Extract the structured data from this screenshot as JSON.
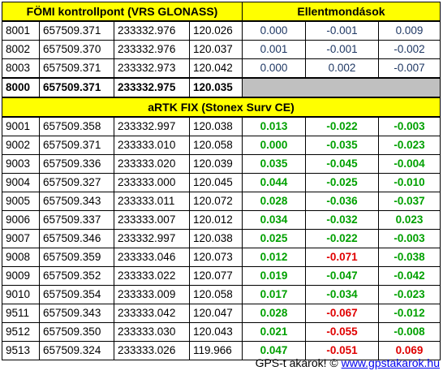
{
  "header": {
    "control_title": "FÖMI kontrollpont (VRS GLONASS)",
    "diff_title": "Ellentmondások"
  },
  "control_rows": [
    {
      "id": "8001",
      "x": "657509.371",
      "y": "233332.976",
      "h": "120.026",
      "d1": "0.000",
      "d2": "-0.001",
      "d3": "0.009"
    },
    {
      "id": "8002",
      "x": "657509.370",
      "y": "233332.976",
      "h": "120.037",
      "d1": "0.001",
      "d2": "-0.001",
      "d3": "-0.002"
    },
    {
      "id": "8003",
      "x": "657509.371",
      "y": "233332.973",
      "h": "120.042",
      "d1": "0.000",
      "d2": "0.002",
      "d3": "-0.007"
    }
  ],
  "mean_row": {
    "id": "8000",
    "x": "657509.371",
    "y": "233332.975",
    "h": "120.035"
  },
  "section2_title": "aRTK FIX (Stonex Surv CE)",
  "artk_rows": [
    {
      "id": "9001",
      "x": "657509.358",
      "y": "233332.997",
      "h": "120.038",
      "d1": "0.013",
      "d2": "-0.022",
      "d3": "-0.003"
    },
    {
      "id": "9002",
      "x": "657509.371",
      "y": "233333.010",
      "h": "120.058",
      "d1": "0.000",
      "d2": "-0.035",
      "d3": "-0.023"
    },
    {
      "id": "9003",
      "x": "657509.336",
      "y": "233333.020",
      "h": "120.039",
      "d1": "0.035",
      "d2": "-0.045",
      "d3": "-0.004"
    },
    {
      "id": "9004",
      "x": "657509.327",
      "y": "233333.000",
      "h": "120.045",
      "d1": "0.044",
      "d2": "-0.025",
      "d3": "-0.010"
    },
    {
      "id": "9005",
      "x": "657509.343",
      "y": "233333.011",
      "h": "120.072",
      "d1": "0.028",
      "d2": "-0.036",
      "d3": "-0.037"
    },
    {
      "id": "9006",
      "x": "657509.337",
      "y": "233333.007",
      "h": "120.012",
      "d1": "0.034",
      "d2": "-0.032",
      "d3": "0.023"
    },
    {
      "id": "9007",
      "x": "657509.346",
      "y": "233332.997",
      "h": "120.038",
      "d1": "0.025",
      "d2": "-0.022",
      "d3": "-0.003"
    },
    {
      "id": "9008",
      "x": "657509.359",
      "y": "233333.046",
      "h": "120.073",
      "d1": "0.012",
      "d2": "-0.071",
      "d3": "-0.038",
      "red2": true
    },
    {
      "id": "9009",
      "x": "657509.352",
      "y": "233333.022",
      "h": "120.077",
      "d1": "0.019",
      "d2": "-0.047",
      "d3": "-0.042"
    },
    {
      "id": "9010",
      "x": "657509.354",
      "y": "233333.009",
      "h": "120.058",
      "d1": "0.017",
      "d2": "-0.034",
      "d3": "-0.023"
    },
    {
      "id": "9511",
      "x": "657509.343",
      "y": "233333.042",
      "h": "120.047",
      "d1": "0.028",
      "d2": "-0.067",
      "d3": "-0.012",
      "red2": true
    },
    {
      "id": "9512",
      "x": "657509.350",
      "y": "233333.030",
      "h": "120.043",
      "d1": "0.021",
      "d2": "-0.055",
      "d3": "-0.008",
      "red2": true
    },
    {
      "id": "9513",
      "x": "657509.324",
      "y": "233333.026",
      "h": "119.966",
      "d1": "0.047",
      "d2": "-0.051",
      "d3": "0.069",
      "red2": true,
      "red3": true
    }
  ],
  "footer": {
    "text": "GPS-t akarok! © ",
    "link": "www.gpstakarok.hu"
  }
}
